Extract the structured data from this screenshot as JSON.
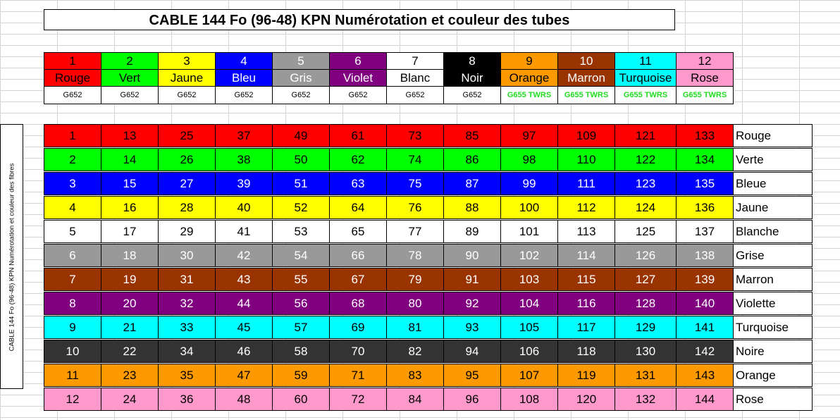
{
  "title": "CABLE 144 Fo (96-48)  KPN Numérotation et couleur des tubes",
  "side_label": "CABLE 144 Fo (96-48) KPN Numérotation et couleur des fibres",
  "tubes": [
    {
      "num": "1",
      "name": "Rouge",
      "type": "G652",
      "bg": "#ff0000",
      "fg": "#000000"
    },
    {
      "num": "2",
      "name": "Vert",
      "type": "G652",
      "bg": "#00ff00",
      "fg": "#000000"
    },
    {
      "num": "3",
      "name": "Jaune",
      "type": "G652",
      "bg": "#ffff00",
      "fg": "#000000"
    },
    {
      "num": "4",
      "name": "Bleu",
      "type": "G652",
      "bg": "#0000ff",
      "fg": "#ffffff"
    },
    {
      "num": "5",
      "name": "Gris",
      "type": "G652",
      "bg": "#999999",
      "fg": "#ffffff"
    },
    {
      "num": "6",
      "name": "Violet",
      "type": "G652",
      "bg": "#800080",
      "fg": "#ffffff"
    },
    {
      "num": "7",
      "name": "Blanc",
      "type": "G652",
      "bg": "#ffffff",
      "fg": "#000000"
    },
    {
      "num": "8",
      "name": "Noir",
      "type": "G652",
      "bg": "#000000",
      "fg": "#ffffff"
    },
    {
      "num": "9",
      "name": "Orange",
      "type": "G655 TWRS",
      "bg": "#ff9900",
      "fg": "#000000"
    },
    {
      "num": "10",
      "name": "Marron",
      "type": "G655 TWRS",
      "bg": "#993300",
      "fg": "#ffffff"
    },
    {
      "num": "11",
      "name": "Turquoise",
      "type": "G655 TWRS",
      "bg": "#00ffff",
      "fg": "#000000"
    },
    {
      "num": "12",
      "name": "Rose",
      "type": "G655 TWRS",
      "bg": "#ff99cc",
      "fg": "#000000"
    }
  ],
  "fibers": [
    {
      "color": "Rouge",
      "bg": "#ff0000",
      "fg": "#000000",
      "values": [
        "1",
        "13",
        "25",
        "37",
        "49",
        "61",
        "73",
        "85",
        "97",
        "109",
        "121",
        "133"
      ]
    },
    {
      "color": "Verte",
      "bg": "#00ff00",
      "fg": "#000000",
      "values": [
        "2",
        "14",
        "26",
        "38",
        "50",
        "62",
        "74",
        "86",
        "98",
        "110",
        "122",
        "134"
      ]
    },
    {
      "color": "Bleue",
      "bg": "#0000ff",
      "fg": "#ffffff",
      "values": [
        "3",
        "15",
        "27",
        "39",
        "51",
        "63",
        "75",
        "87",
        "99",
        "111",
        "123",
        "135"
      ]
    },
    {
      "color": "Jaune",
      "bg": "#ffff00",
      "fg": "#000000",
      "values": [
        "4",
        "16",
        "28",
        "40",
        "52",
        "64",
        "76",
        "88",
        "100",
        "112",
        "124",
        "136"
      ]
    },
    {
      "color": "Blanche",
      "bg": "#ffffff",
      "fg": "#000000",
      "values": [
        "5",
        "17",
        "29",
        "41",
        "53",
        "65",
        "77",
        "89",
        "101",
        "113",
        "125",
        "137"
      ]
    },
    {
      "color": "Grise",
      "bg": "#999999",
      "fg": "#ffffff",
      "values": [
        "6",
        "18",
        "30",
        "42",
        "54",
        "66",
        "78",
        "90",
        "102",
        "114",
        "126",
        "138"
      ]
    },
    {
      "color": "Marron",
      "bg": "#993300",
      "fg": "#ffffff",
      "values": [
        "7",
        "19",
        "31",
        "43",
        "55",
        "67",
        "79",
        "91",
        "103",
        "115",
        "127",
        "139"
      ]
    },
    {
      "color": "Violette",
      "bg": "#800080",
      "fg": "#ffffff",
      "values": [
        "8",
        "20",
        "32",
        "44",
        "56",
        "68",
        "80",
        "92",
        "104",
        "116",
        "128",
        "140"
      ]
    },
    {
      "color": "Turquoise",
      "bg": "#00ffff",
      "fg": "#000000",
      "values": [
        "9",
        "21",
        "33",
        "45",
        "57",
        "69",
        "81",
        "93",
        "105",
        "117",
        "129",
        "141"
      ]
    },
    {
      "color": "Noire",
      "bg": "#333333",
      "fg": "#ffffff",
      "values": [
        "10",
        "22",
        "34",
        "46",
        "58",
        "70",
        "82",
        "94",
        "106",
        "118",
        "130",
        "142"
      ]
    },
    {
      "color": "Orange",
      "bg": "#ff9900",
      "fg": "#000000",
      "values": [
        "11",
        "23",
        "35",
        "47",
        "59",
        "71",
        "83",
        "95",
        "107",
        "119",
        "131",
        "143"
      ]
    },
    {
      "color": "Rose",
      "bg": "#ff99cc",
      "fg": "#000000",
      "values": [
        "12",
        "24",
        "36",
        "48",
        "60",
        "72",
        "84",
        "96",
        "108",
        "120",
        "132",
        "144"
      ]
    }
  ]
}
